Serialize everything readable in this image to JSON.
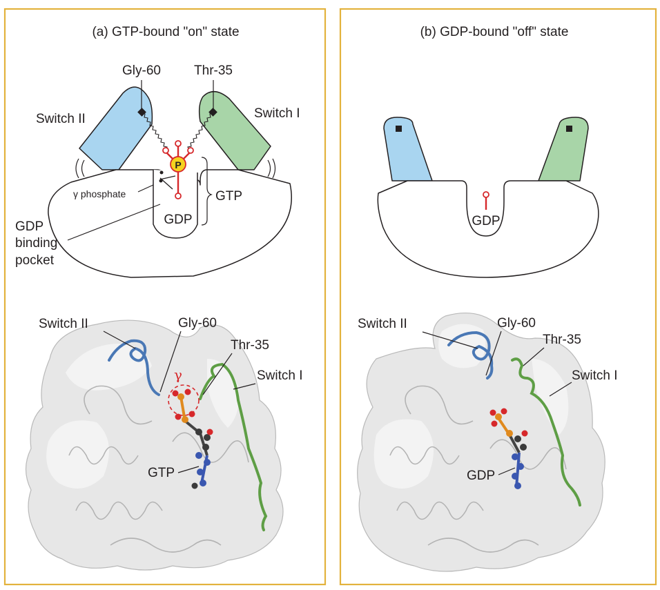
{
  "colors": {
    "panel_border": "#e3b23c",
    "switch_ii": "#a9d5f0",
    "switch_i": "#a8d5a8",
    "phosphate_red": "#d6282b",
    "phosphorus_yellow": "#f5d21f",
    "switch_ii_loop": "#4a78b5",
    "switch_i_loop": "#5e9e45"
  },
  "panel_a": {
    "title": "(a) GTP-bound \"on\" state",
    "gly60": "Gly-60",
    "thr35": "Thr-35",
    "switch_ii": "Switch II",
    "switch_i": "Switch I",
    "p_symbol": "P",
    "gamma_phosphate": "γ phosphate",
    "gtp": "GTP",
    "gdp": "GDP",
    "pocket_line1": "GDP",
    "pocket_line2": "binding",
    "pocket_line3": "pocket"
  },
  "panel_b": {
    "title": "(b) GDP-bound \"off\" state",
    "gdp": "GDP"
  },
  "structure_a": {
    "switch_ii": "Switch II",
    "gly60": "Gly-60",
    "thr35": "Thr-35",
    "switch_i": "Switch I",
    "gamma": "γ",
    "gtp": "GTP"
  },
  "structure_b": {
    "switch_ii": "Switch II",
    "gly60": "Gly-60",
    "thr35": "Thr-35",
    "switch_i": "Switch I",
    "gdp": "GDP"
  }
}
